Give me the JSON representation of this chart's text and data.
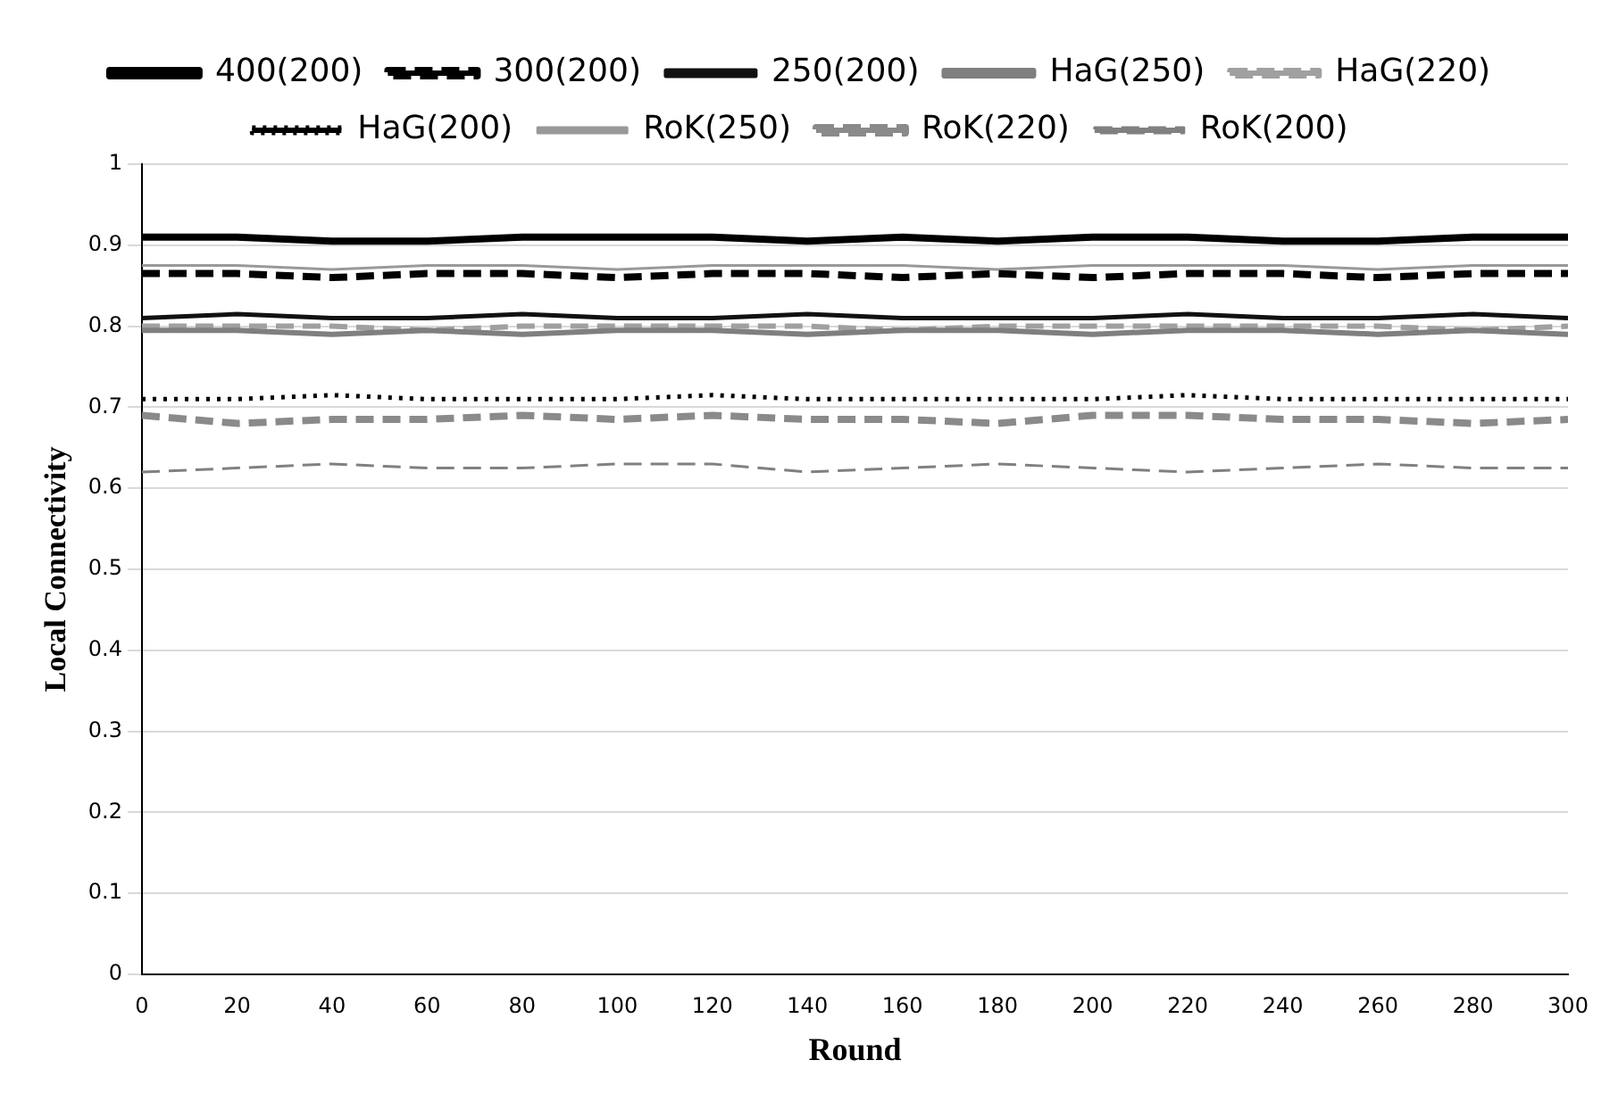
{
  "chart_data": {
    "type": "line",
    "xlabel": "Round",
    "ylabel": "Local Connectivity",
    "x": [
      0,
      20,
      40,
      60,
      80,
      100,
      120,
      140,
      160,
      180,
      200,
      220,
      240,
      260,
      280,
      300
    ],
    "series": [
      {
        "name": "400(200)",
        "color": "#000000",
        "line_style": "solid",
        "values": [
          0.91,
          0.91,
          0.905,
          0.905,
          0.91,
          0.91,
          0.91,
          0.905,
          0.91,
          0.905,
          0.91,
          0.91,
          0.905,
          0.905,
          0.91,
          0.91
        ]
      },
      {
        "name": "300(200)",
        "color": "#000000",
        "line_style": "dashed",
        "values": [
          0.865,
          0.865,
          0.86,
          0.865,
          0.865,
          0.86,
          0.865,
          0.865,
          0.86,
          0.865,
          0.86,
          0.865,
          0.865,
          0.86,
          0.865,
          0.865
        ]
      },
      {
        "name": "250(200)",
        "color": "#111111",
        "line_style": "solid",
        "values": [
          0.81,
          0.815,
          0.81,
          0.81,
          0.815,
          0.81,
          0.81,
          0.815,
          0.81,
          0.81,
          0.81,
          0.815,
          0.81,
          0.81,
          0.815,
          0.81
        ]
      },
      {
        "name": "HaG(250)",
        "color": "#7f7f7f",
        "line_style": "solid",
        "values": [
          0.795,
          0.795,
          0.79,
          0.795,
          0.79,
          0.795,
          0.795,
          0.79,
          0.795,
          0.795,
          0.79,
          0.795,
          0.795,
          0.79,
          0.795,
          0.79
        ]
      },
      {
        "name": "HaG(220)",
        "color": "#a0a0a0",
        "line_style": "dashed",
        "values": [
          0.8,
          0.8,
          0.8,
          0.795,
          0.8,
          0.8,
          0.8,
          0.8,
          0.795,
          0.8,
          0.8,
          0.8,
          0.8,
          0.8,
          0.795,
          0.8
        ]
      },
      {
        "name": "HaG(200)",
        "color": "#000000",
        "line_style": "dotted",
        "values": [
          0.71,
          0.71,
          0.715,
          0.71,
          0.71,
          0.71,
          0.715,
          0.71,
          0.71,
          0.71,
          0.71,
          0.715,
          0.71,
          0.71,
          0.71,
          0.71
        ]
      },
      {
        "name": "RoK(250)",
        "color": "#999999",
        "line_style": "solid",
        "values": [
          0.875,
          0.875,
          0.87,
          0.875,
          0.875,
          0.87,
          0.875,
          0.875,
          0.875,
          0.87,
          0.875,
          0.875,
          0.875,
          0.87,
          0.875,
          0.875
        ]
      },
      {
        "name": "RoK(220)",
        "color": "#8a8a8a",
        "line_style": "dashed",
        "values": [
          0.69,
          0.68,
          0.685,
          0.685,
          0.69,
          0.685,
          0.69,
          0.685,
          0.685,
          0.68,
          0.69,
          0.69,
          0.685,
          0.685,
          0.68,
          0.685
        ]
      },
      {
        "name": "RoK(200)",
        "color": "#808080",
        "line_style": "dashed",
        "values": [
          0.62,
          0.625,
          0.63,
          0.625,
          0.625,
          0.63,
          0.63,
          0.62,
          0.625,
          0.63,
          0.625,
          0.62,
          0.625,
          0.63,
          0.625,
          0.625
        ]
      }
    ],
    "xlim": [
      0,
      300
    ],
    "xticks": [
      0,
      20,
      40,
      60,
      80,
      100,
      120,
      140,
      160,
      180,
      200,
      220,
      240,
      260,
      280,
      300
    ],
    "ylim": [
      0,
      1
    ],
    "yticks": [
      0,
      0.1,
      0.2,
      0.3,
      0.4,
      0.5,
      0.6,
      0.7,
      0.8,
      0.9,
      1
    ],
    "grid": "y",
    "legend": "top",
    "marker": "none"
  }
}
